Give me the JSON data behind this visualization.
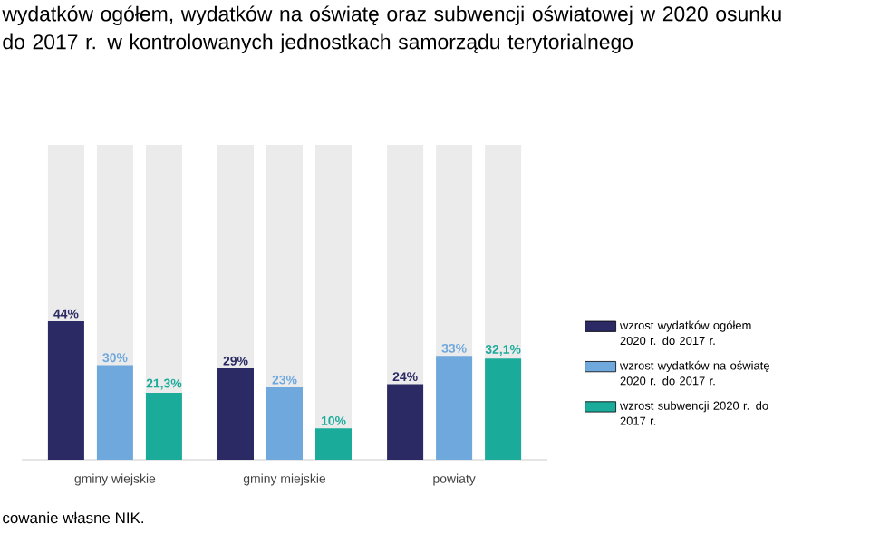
{
  "chart_data": {
    "type": "bar",
    "title": "wydatków ogółem, wydatków na oświatę oraz subwencji oświatowej w 2020 osunku do 2017 r. w kontrolowanych jednostkach samorządu terytorialnego",
    "categories": [
      "gminy wiejskie",
      "gminy miejskie",
      "powiaty"
    ],
    "series": [
      {
        "name": "wzrost wydatków ogółem 2020 r. do 2017 r.",
        "color": "#2b2a64",
        "values": [
          44,
          29,
          24
        ],
        "value_labels": [
          "44%",
          "29%",
          "24%"
        ]
      },
      {
        "name": "wzrost wydatków na oświatę 2020 r. do 2017 r.",
        "color": "#6fa8dc",
        "values": [
          30,
          23,
          33
        ],
        "value_labels": [
          "30%",
          "23%",
          "33%"
        ]
      },
      {
        "name": "wzrost subwencji 2020 r. do 2017 r.",
        "color": "#1aab9b",
        "values": [
          21.3,
          10,
          32.1
        ],
        "value_labels": [
          "21,3%",
          "10%",
          "32,1%"
        ]
      }
    ],
    "ylim": [
      0,
      100
    ],
    "tick_labels": "x",
    "legend": "right",
    "annotations": [
      "cowanie własne NIK."
    ]
  }
}
